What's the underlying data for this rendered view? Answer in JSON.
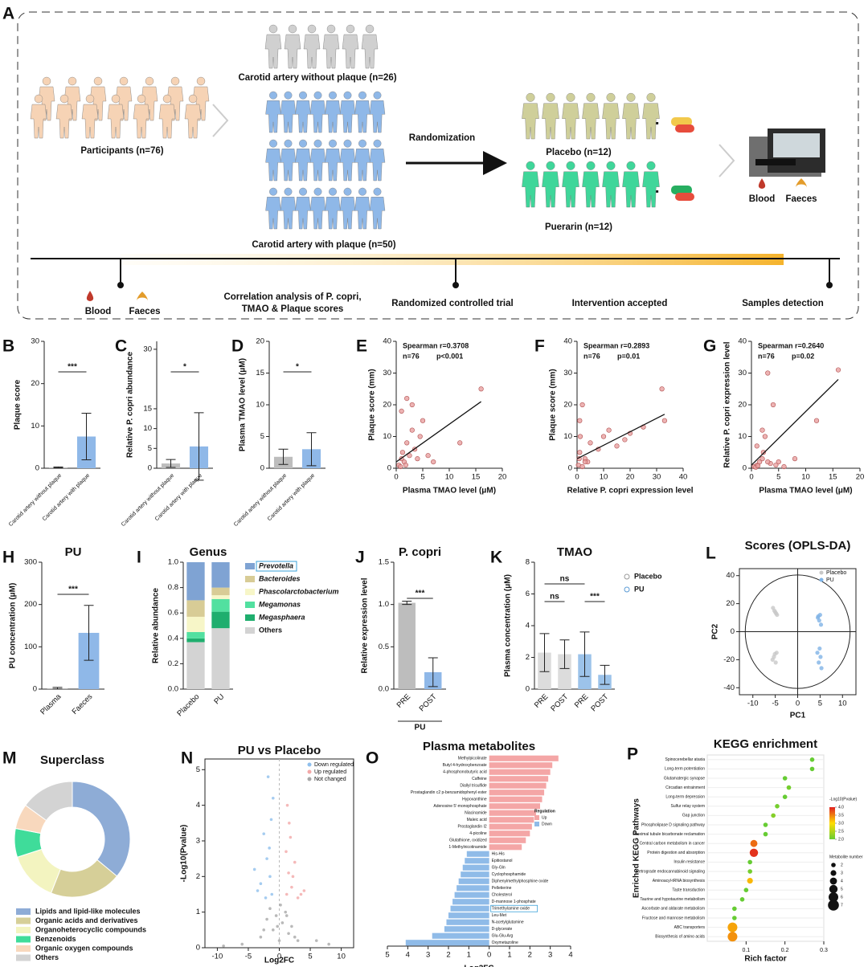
{
  "diagram": {
    "panel": "A",
    "without_plaque": "Carotid artery without plaque (n=26)",
    "participants": "Participants (n=76)",
    "with_plaque": "Carotid artery with plaque (n=50)",
    "randomization": "Randomization",
    "placebo": "Placebo (n=12)",
    "puerarin": "Puerarin (n=12)",
    "sample_blood": "Blood",
    "sample_faeces": "Faeces",
    "baseline_blood": "Blood",
    "baseline_faeces": "Faeces",
    "correlation_line1": "Correlation analysis of P. copri,",
    "correlation_line2": "TMAO & Plaque scores",
    "rct": "Randomized controlled trial",
    "intervention": "Intervention accepted",
    "detection": "Samples detection"
  },
  "chart_data": [
    {
      "type": "bar",
      "panel": "B",
      "y_label": "Plaque score",
      "categories": [
        "Carotid artery without plaque",
        "Carotid artery with plaque"
      ],
      "values": [
        0.2,
        7.5
      ],
      "errors": [
        0.1,
        5.5
      ],
      "colors": [
        "#bdbdbd",
        "#8fb8e8"
      ],
      "ylim": [
        0,
        30
      ],
      "yticks": [
        0,
        10,
        20,
        30
      ],
      "annotations": [
        "***"
      ]
    },
    {
      "type": "bar",
      "panel": "C",
      "y_label": "Relative P. copri abundance",
      "categories": [
        "Carotid artery without plaque",
        "Carotid artery with plaque"
      ],
      "values": [
        1.2,
        5.5
      ],
      "errors": [
        1.0,
        8.5
      ],
      "colors": [
        "#bdbdbd",
        "#8fb8e8"
      ],
      "ylim": [
        0,
        32
      ],
      "yticks": [
        0,
        5,
        10,
        15,
        30
      ],
      "annotations": [
        "*"
      ]
    },
    {
      "type": "bar",
      "panel": "D",
      "y_label": "Plasma TMAO level (μM)",
      "categories": [
        "Carotid artery without plaque",
        "Carotid artery with plaque"
      ],
      "values": [
        1.8,
        3.0
      ],
      "errors": [
        1.2,
        2.6
      ],
      "colors": [
        "#bdbdbd",
        "#8fb8e8"
      ],
      "ylim": [
        0,
        20
      ],
      "yticks": [
        0,
        5,
        10,
        15,
        20
      ],
      "annotations": [
        "*"
      ]
    },
    {
      "type": "scatter",
      "panel": "E",
      "x_label": "Plasma TMAO level (μM)",
      "y_label": "Plaque score (mm)",
      "xlim": [
        0,
        20
      ],
      "xticks": [
        0,
        5,
        10,
        15,
        20
      ],
      "ylim": [
        0,
        40
      ],
      "yticks": [
        0,
        10,
        20,
        30,
        40
      ],
      "annotations": [
        "Spearman r=0.3708",
        "n=76",
        "p<0.001"
      ],
      "series": [
        {
          "color": "#e8a0a0",
          "x": [
            0.5,
            1,
            1.2,
            1.5,
            2,
            2.5,
            3,
            3,
            3.5,
            4,
            4.5,
            5,
            6,
            7,
            1,
            2,
            0.8,
            12,
            16,
            1.8
          ],
          "y": [
            1,
            3,
            5,
            2,
            8,
            4,
            12,
            20,
            6,
            3,
            10,
            15,
            4,
            2,
            18,
            22,
            0.5,
            8,
            25,
            1
          ]
        }
      ],
      "fit_line": {
        "x": [
          0,
          16
        ],
        "y": [
          2,
          21
        ]
      }
    },
    {
      "type": "scatter",
      "panel": "F",
      "x_label": "Relative P. copri expression level",
      "y_label": "Plaque score (mm)",
      "xlim": [
        0,
        40
      ],
      "xticks": [
        0,
        10,
        20,
        30,
        40
      ],
      "ylim": [
        0,
        40
      ],
      "yticks": [
        0,
        10,
        20,
        30,
        40
      ],
      "annotations": [
        "Spearman r=0.2893",
        "n=76",
        "p=0.01"
      ],
      "series": [
        {
          "color": "#e8a0a0",
          "x": [
            0.5,
            1,
            1.2,
            2,
            3,
            4,
            5,
            8,
            12,
            18,
            20,
            25,
            32,
            33,
            1,
            2,
            0.8,
            10,
            15,
            3
          ],
          "y": [
            1,
            5,
            10,
            20,
            3,
            2,
            8,
            6,
            12,
            9,
            11,
            13,
            25,
            15,
            15,
            0.5,
            3,
            10,
            7,
            2
          ]
        }
      ],
      "fit_line": {
        "x": [
          0,
          33
        ],
        "y": [
          3,
          17
        ]
      }
    },
    {
      "type": "scatter",
      "panel": "G",
      "x_label": "Plasma TMAO level (μM)",
      "y_label": "Relative P. copri expression level",
      "xlim": [
        0,
        20
      ],
      "xticks": [
        0,
        5,
        10,
        15,
        20
      ],
      "ylim": [
        0,
        40
      ],
      "yticks": [
        0,
        10,
        20,
        30,
        40
      ],
      "annotations": [
        "Spearman r=0.2640",
        "n=76",
        "p=0.02"
      ],
      "series": [
        {
          "color": "#e8a0a0",
          "x": [
            0.5,
            1,
            1.5,
            2,
            2.5,
            3,
            3.5,
            4,
            5,
            6,
            8,
            12,
            16,
            1,
            2,
            3,
            0.8,
            2.2,
            4.5,
            1.2
          ],
          "y": [
            0.5,
            1,
            2,
            3,
            10,
            30,
            1.5,
            20,
            2,
            0.5,
            3,
            15,
            31,
            7,
            12,
            2,
            0.3,
            5,
            1,
            0.8
          ]
        }
      ],
      "fit_line": {
        "x": [
          0,
          16
        ],
        "y": [
          1,
          28
        ]
      }
    },
    {
      "type": "bar",
      "panel": "H",
      "title": "PU",
      "y_label": "PU concentration (μM)",
      "categories": [
        "Plasma",
        "Faeces"
      ],
      "values": [
        2,
        133
      ],
      "errors": [
        2,
        65
      ],
      "colors": [
        "#bdbdbd",
        "#8fb8e8"
      ],
      "ylim": [
        0,
        300
      ],
      "yticks": [
        0,
        100,
        200,
        300
      ],
      "annotations": [
        "***"
      ]
    },
    {
      "type": "stacked_bar",
      "panel": "I",
      "title": "Genus",
      "y_label": "Relative abundance",
      "categories": [
        "Placebo",
        "PU"
      ],
      "ylim": [
        0,
        1
      ],
      "yticks": [
        {
          "value": 0,
          "label": "0.0"
        },
        0.2,
        0.4,
        0.6,
        0.8,
        {
          "value": 1,
          "label": "1.0"
        }
      ],
      "series": [
        {
          "name": "Others",
          "color": "#d3d3d3",
          "values": [
            0.37,
            0.48
          ]
        },
        {
          "name": "Megasphaera",
          "color": "#1fae6e",
          "values": [
            0.03,
            0.13
          ]
        },
        {
          "name": "Megamonas",
          "color": "#52e0a0",
          "values": [
            0.05,
            0.1
          ]
        },
        {
          "name": "Phascolarctobacterium",
          "color": "#f7f6c8",
          "values": [
            0.12,
            0.03
          ]
        },
        {
          "name": "Bacteroides",
          "color": "#d8cc96",
          "values": [
            0.13,
            0.06
          ]
        },
        {
          "name": "Prevotella",
          "color": "#7fa3d3",
          "values": [
            0.3,
            0.2
          ]
        }
      ]
    },
    {
      "type": "bar",
      "panel": "J",
      "title": "P. copri",
      "y_label": "Relative expression level",
      "categories": [
        "PRE",
        "POST"
      ],
      "group_label": "PU",
      "values": [
        1.02,
        0.2
      ],
      "errors": [
        0.02,
        0.17
      ],
      "colors": [
        "#bdbdbd",
        "#8fb8e8"
      ],
      "ylim": [
        0,
        1.5
      ],
      "yticks": [
        {
          "value": 0,
          "label": "0.0"
        },
        0.5,
        {
          "value": 1,
          "label": "1.0"
        },
        1.5
      ],
      "annotations": [
        "***"
      ]
    },
    {
      "type": "bar",
      "panel": "K",
      "title": "TMAO",
      "y_label": "Plasma concentration (μM)",
      "categories": [
        "PRE",
        "POST",
        "PRE",
        "POST"
      ],
      "values": [
        2.3,
        2.2,
        2.2,
        0.9
      ],
      "errors": [
        1.2,
        0.9,
        1.4,
        0.6
      ],
      "colors": [
        "#dcdcdc",
        "#dcdcdc",
        "#9cc3ea",
        "#9cc3ea"
      ],
      "ylim": [
        0,
        8
      ],
      "yticks": [
        0,
        2,
        4,
        6,
        8
      ],
      "annotations": [
        "ns",
        "ns",
        "***"
      ],
      "legend": [
        {
          "name": "Placebo",
          "color": "#999999"
        },
        {
          "name": "PU",
          "color": "#5b9bd5"
        }
      ]
    },
    {
      "type": "scatter",
      "panel": "L",
      "title": "Scores (OPLS-DA)",
      "x_label": "PC1",
      "y_label": "PC2",
      "xlim": [
        -13,
        13
      ],
      "xticks": [
        -10,
        -5,
        0,
        5,
        10
      ],
      "ylim": [
        -45,
        45
      ],
      "yticks": [
        -40,
        -20,
        0,
        20,
        40
      ],
      "series": [
        {
          "name": "Placebo",
          "color": "#c8c8c8",
          "x": [
            -5.2,
            -4.8,
            -5.5,
            -4.6,
            -5,
            -5.3,
            -4.9,
            -5.1,
            -5.6,
            -4.7
          ],
          "y": [
            15,
            13,
            17,
            12,
            14,
            -18,
            -22,
            -16,
            -20,
            -15
          ]
        },
        {
          "name": "PU",
          "color": "#7fb3e6",
          "x": [
            4.5,
            5,
            4.8,
            5.2,
            4.6,
            4.9,
            5.1,
            4.7,
            5.3,
            4.4
          ],
          "y": [
            10,
            12,
            8,
            5,
            11,
            -12,
            -18,
            -22,
            -26,
            -15
          ]
        }
      ]
    },
    {
      "type": "donut",
      "panel": "M",
      "title": "Superclass",
      "categories": [
        "Lipids and lipid-like molecules",
        "Organic acids and derivatives",
        "Organoheterocyclic compounds",
        "Benzenoids",
        "Organic oxygen compounds",
        "Others"
      ],
      "values": [
        36,
        20,
        14,
        8,
        7,
        15
      ],
      "colors": [
        "#8eacd6",
        "#d6cf98",
        "#f3f4c0",
        "#3fdc9a",
        "#f8d8bd",
        "#d3d3d3"
      ]
    },
    {
      "type": "scatter",
      "panel": "N",
      "title": "PU vs Placebo",
      "x_label": "Log2FC",
      "y_label": "-Log10(Pvalue)",
      "xlim": [
        -12,
        12
      ],
      "xticks": [
        -10,
        -5,
        0,
        5,
        10
      ],
      "ylim": [
        0,
        5.3
      ],
      "yticks": [
        0,
        1,
        2,
        3,
        4,
        5
      ],
      "series": [
        {
          "name": "Down regulated",
          "color": "#8fbfec",
          "x": [
            -1.2,
            -1.5,
            -2,
            -2.5,
            -3,
            -1.8,
            -4,
            -1.3,
            -2.2,
            -1.6,
            -3.5,
            -1
          ],
          "y": [
            1.5,
            2,
            2.5,
            3.2,
            1.8,
            4.8,
            2.2,
            3.6,
            1.4,
            2.8,
            1.6,
            4.2
          ]
        },
        {
          "name": "Up regulated",
          "color": "#f2a8a8",
          "x": [
            1.2,
            1.5,
            2,
            2.5,
            3,
            1.8,
            4,
            1.3,
            2.2,
            1.1,
            3.5,
            1.6
          ],
          "y": [
            1.5,
            2.1,
            1.7,
            2.4,
            1.4,
            3.1,
            1.6,
            4.0,
            2.0,
            2.7,
            1.5,
            3.5
          ]
        },
        {
          "name": "Not changed",
          "color": "#a8a8a8",
          "x": [
            -3,
            -2,
            -1.5,
            -1,
            -0.5,
            0,
            0.5,
            1,
            1.5,
            2,
            2.5,
            3,
            -6,
            6,
            -9,
            8,
            -2.5,
            0.2,
            -0.3,
            1.2
          ],
          "y": [
            0.3,
            0.8,
            1.1,
            0.5,
            0.9,
            0.2,
            0.7,
            1.0,
            0.4,
            0.6,
            0.3,
            0.2,
            0.1,
            0.2,
            0.05,
            0.1,
            0.5,
            1.2,
            0.6,
            0.9
          ]
        }
      ]
    },
    {
      "type": "hbar",
      "panel": "O",
      "title": "Plasma metabolites",
      "x_label": "Log2FC",
      "legend_title": "Regulation",
      "xlim": [
        -5,
        4
      ],
      "xticks": [
        {
          "value": -5,
          "label": "5"
        },
        {
          "value": -4,
          "label": "4"
        },
        {
          "value": -3,
          "label": "3"
        },
        {
          "value": -2,
          "label": "2"
        },
        {
          "value": -1,
          "label": "1"
        },
        0,
        1,
        2,
        3,
        4
      ],
      "series": [
        {
          "name": "Up",
          "color": "#f4a6a6",
          "categories": [
            "Methylpicolinate",
            "Butyl 4-hydroxybenzoate",
            "4-phosphonobutyric acid",
            "Caffeine",
            "Diallyl trisulfide",
            "Prostaglandin c2 p-benzamidophenyl ester",
            "Hypoxanthine",
            "Adenosine 5'-monophosphate",
            "Niacinamide",
            "Maleic acid",
            "Prostaglandin I2",
            "4-picoline",
            "Glutathione, oxidized",
            "1-Methylnicotinamide"
          ],
          "values": [
            3.4,
            3.1,
            3.0,
            2.9,
            2.8,
            2.7,
            2.6,
            2.5,
            2.3,
            2.2,
            2.1,
            2.0,
            1.8,
            1.6
          ]
        },
        {
          "name": "Down",
          "color": "#8fbbe8",
          "categories": [
            "His-His",
            "Epitiostanol",
            "Gly-Gln",
            "Cyclophosphamide",
            "Diphenylmethylphosphine oxide",
            "Pelletierine",
            "Cholesterol",
            "D-mannose 1-phosphate",
            "Trimethylamine oxide",
            "Leu-Met",
            "N-acetylglutamine",
            "D-glycerate",
            "Glu-Glu-Arg",
            "Oxymetazoline"
          ],
          "values": [
            -1.1,
            -1.2,
            -1.3,
            -1.4,
            -1.5,
            -1.6,
            -1.7,
            -1.8,
            -1.9,
            -2.0,
            -2.1,
            -2.2,
            -2.8,
            -4.1
          ]
        }
      ]
    },
    {
      "type": "bubble",
      "panel": "P",
      "title": "KEGG enrichment",
      "x_label": "Rich factor",
      "y_label": "Enriched KEGG Pathways",
      "xlim": [
        0,
        0.3
      ],
      "xticks": [
        0.1,
        0.2,
        0.3
      ],
      "categories": [
        "Spinocerebellar ataxia",
        "Long-term potentiation",
        "Glutamatergic synapse",
        "Circadian entrainment",
        "Long-term depression",
        "Sulfur relay system",
        "Gap junction",
        "Phospholipase D signaling pathway",
        "Proximal tubule bicarbonate reclamation",
        "Central carbon metabolism in cancer",
        "Protein digestion and absorption",
        "Insulin resistance",
        "Retrograde endocannabinoid signaling",
        "Aminoacyl-tRNA biosynthesis",
        "Taste transduction",
        "Taurine and hypotaurine metabolism",
        "Ascorbate and aldarate metabolism",
        "Fructose and mannose metabolism",
        "ABC transporters",
        "Biosynthesis of amino acids"
      ],
      "values": [
        0.27,
        0.27,
        0.2,
        0.21,
        0.2,
        0.18,
        0.17,
        0.15,
        0.15,
        0.12,
        0.12,
        0.11,
        0.11,
        0.11,
        0.1,
        0.09,
        0.07,
        0.07,
        0.065,
        0.065
      ],
      "sizes": [
        2,
        2,
        2,
        2,
        2,
        2,
        2,
        2,
        2,
        4,
        5,
        2,
        2,
        3,
        2,
        2,
        2,
        2,
        6,
        6
      ],
      "pvalues": [
        1.8,
        1.9,
        2.0,
        2.1,
        2.0,
        2.1,
        2.2,
        1.9,
        2.0,
        3.6,
        3.9,
        2.0,
        2.1,
        3.2,
        1.9,
        2.0,
        1.9,
        2.0,
        3.3,
        3.4
      ],
      "color_title": "-Log10(Pvalue)",
      "clim": [
        2,
        4
      ],
      "color_ticks": [
        {
          "value": 4,
          "label": "4.0"
        },
        3.5,
        {
          "value": 3,
          "label": "3.0"
        },
        2.5,
        {
          "value": 2,
          "label": "2.0"
        }
      ],
      "size_title": "Metabolite number",
      "size_ticks": [
        2,
        3,
        4,
        5,
        6,
        7
      ]
    }
  ]
}
